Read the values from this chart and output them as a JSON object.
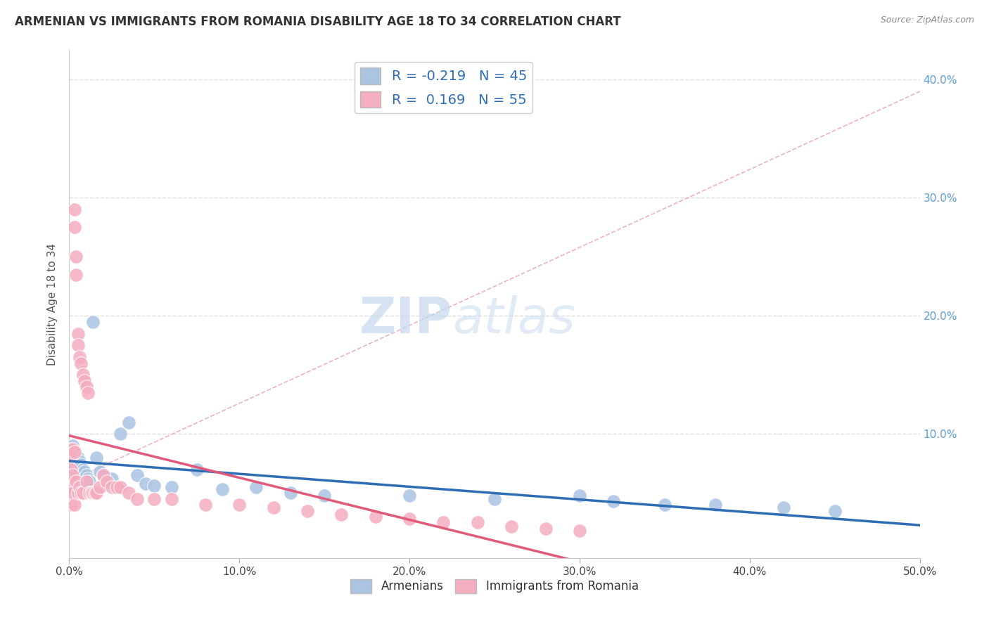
{
  "title": "ARMENIAN VS IMMIGRANTS FROM ROMANIA DISABILITY AGE 18 TO 34 CORRELATION CHART",
  "source": "Source: ZipAtlas.com",
  "ylabel": "Disability Age 18 to 34",
  "xlim": [
    0.0,
    0.5
  ],
  "ylim": [
    -0.005,
    0.425
  ],
  "legend_r_armenian": "-0.219",
  "legend_n_armenian": "45",
  "legend_r_romania": "0.169",
  "legend_n_romania": "55",
  "armenian_color": "#aac4e2",
  "romania_color": "#f5adc0",
  "armenian_line_color": "#2e6db4",
  "romania_line_color": "#e05a7a",
  "dashed_line_color": "#e8aabb",
  "background_color": "#ffffff",
  "grid_color": "#e0e0e0",
  "title_color": "#333333",
  "source_color": "#888888",
  "right_tick_color": "#5b9bd5",
  "watermark_zip": "ZIP",
  "watermark_atlas": "atlas",
  "armenians_x": [
    0.001,
    0.001,
    0.001,
    0.002,
    0.002,
    0.002,
    0.003,
    0.003,
    0.003,
    0.004,
    0.004,
    0.005,
    0.005,
    0.006,
    0.006,
    0.007,
    0.008,
    0.009,
    0.01,
    0.011,
    0.012,
    0.014,
    0.016,
    0.018,
    0.02,
    0.025,
    0.03,
    0.035,
    0.04,
    0.045,
    0.05,
    0.06,
    0.075,
    0.09,
    0.11,
    0.13,
    0.15,
    0.2,
    0.25,
    0.3,
    0.32,
    0.35,
    0.38,
    0.42,
    0.45
  ],
  "armenians_y": [
    0.087,
    0.082,
    0.075,
    0.09,
    0.08,
    0.07,
    0.085,
    0.078,
    0.065,
    0.082,
    0.068,
    0.08,
    0.065,
    0.077,
    0.06,
    0.074,
    0.07,
    0.068,
    0.065,
    0.062,
    0.06,
    0.195,
    0.08,
    0.068,
    0.065,
    0.062,
    0.1,
    0.11,
    0.065,
    0.058,
    0.056,
    0.055,
    0.07,
    0.053,
    0.055,
    0.05,
    0.048,
    0.048,
    0.045,
    0.048,
    0.043,
    0.04,
    0.04,
    0.038,
    0.035
  ],
  "romania_x": [
    0.001,
    0.001,
    0.001,
    0.001,
    0.001,
    0.002,
    0.002,
    0.002,
    0.003,
    0.003,
    0.003,
    0.003,
    0.004,
    0.004,
    0.004,
    0.005,
    0.005,
    0.005,
    0.006,
    0.006,
    0.007,
    0.007,
    0.008,
    0.008,
    0.009,
    0.01,
    0.01,
    0.011,
    0.012,
    0.013,
    0.014,
    0.015,
    0.016,
    0.018,
    0.02,
    0.022,
    0.025,
    0.028,
    0.03,
    0.035,
    0.04,
    0.05,
    0.06,
    0.08,
    0.1,
    0.12,
    0.14,
    0.16,
    0.18,
    0.2,
    0.22,
    0.24,
    0.26,
    0.28,
    0.3
  ],
  "romania_y": [
    0.087,
    0.082,
    0.07,
    0.055,
    0.04,
    0.087,
    0.065,
    0.05,
    0.29,
    0.275,
    0.085,
    0.04,
    0.25,
    0.235,
    0.06,
    0.185,
    0.175,
    0.05,
    0.165,
    0.055,
    0.16,
    0.05,
    0.15,
    0.05,
    0.145,
    0.14,
    0.06,
    0.135,
    0.05,
    0.05,
    0.05,
    0.05,
    0.05,
    0.055,
    0.065,
    0.06,
    0.055,
    0.055,
    0.055,
    0.05,
    0.045,
    0.045,
    0.045,
    0.04,
    0.04,
    0.038,
    0.035,
    0.032,
    0.03,
    0.028,
    0.025,
    0.025,
    0.022,
    0.02,
    0.018
  ]
}
